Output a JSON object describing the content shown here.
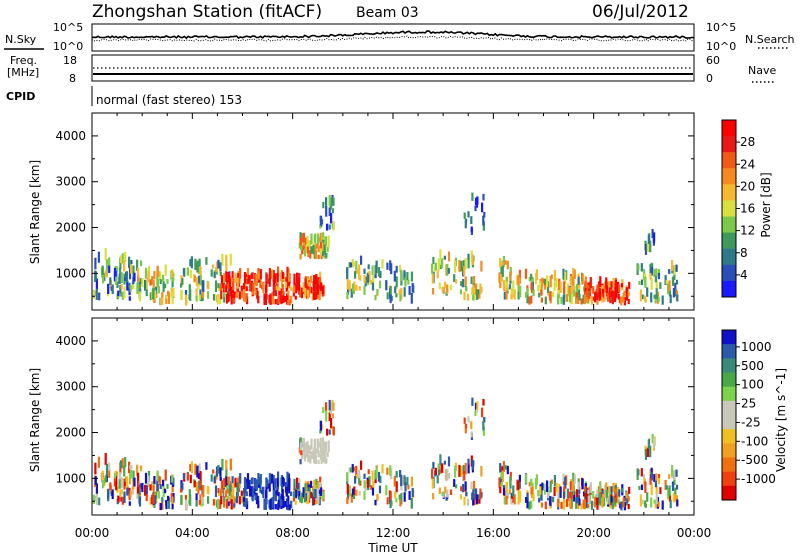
{
  "header": {
    "station": "Zhongshan Station (fitACF)",
    "beam": "Beam 03",
    "date": "06/Jul/2012"
  },
  "nsky_panel": {
    "left_label": "N.Sky",
    "right_label": "N.Search",
    "tick_high": "10^5",
    "tick_low": "10^0"
  },
  "freq_panel": {
    "left_label_1": "Freq.",
    "left_label_2": "[MHz]",
    "left_ticks": [
      "18",
      "8"
    ],
    "right_label": "Nave",
    "right_ticks": [
      "60",
      "0"
    ]
  },
  "cpid": {
    "label": "CPID",
    "text": "normal (fast stereo) 153"
  },
  "chart_data": [
    {
      "type": "heatmap",
      "name": "power",
      "ylabel": "Slant Range [km]",
      "ylim": [
        200,
        4500
      ],
      "yticks": [
        1000,
        2000,
        3000,
        4000
      ],
      "xlim": [
        0,
        24
      ],
      "colorbar": {
        "label": "Power [dB]",
        "ticks": [
          "4",
          "8",
          "12",
          "16",
          "20",
          "24",
          "28"
        ],
        "tick_values": [
          4,
          8,
          12,
          16,
          20,
          24,
          28
        ],
        "range": [
          0,
          32
        ],
        "colors": [
          "#1a1aff",
          "#2a4fb8",
          "#2f7a8a",
          "#3c9a5a",
          "#7cc84a",
          "#d8e040",
          "#f6b830",
          "#f68a20",
          "#f05a18",
          "#e81818",
          "#ff0000"
        ]
      }
    },
    {
      "type": "heatmap",
      "name": "velocity",
      "ylabel": "Slant Range [km]",
      "ylim": [
        200,
        4500
      ],
      "yticks": [
        1000,
        2000,
        3000,
        4000
      ],
      "xlim": [
        0,
        24
      ],
      "colorbar": {
        "label": "Velocity [m s^-1]",
        "ticks": [
          "1000",
          "500",
          "100",
          "25",
          "-25",
          "-100",
          "-500",
          "-1000"
        ],
        "colors": [
          "#1010c8",
          "#2a5aa8",
          "#3a8a7a",
          "#48a848",
          "#7cd24a",
          "#c8c8b8",
          "#c8c8b8",
          "#f0c020",
          "#f0a020",
          "#f07010",
          "#f04010",
          "#e00000"
        ]
      }
    }
  ],
  "time_axis": {
    "label": "Time UT",
    "ticks": [
      "00:00",
      "04:00",
      "08:00",
      "12:00",
      "16:00",
      "20:00",
      "00:00"
    ],
    "tick_hours": [
      0,
      4,
      8,
      12,
      16,
      20,
      24
    ]
  },
  "colors": {
    "power_scale": [
      "#1a1aff",
      "#2a4fb8",
      "#2f7a8a",
      "#3c9a5a",
      "#7cc84a",
      "#d8e040",
      "#f6b830",
      "#f68a20",
      "#f05a18",
      "#e81818",
      "#ff0000"
    ],
    "velocity_scale": [
      "#1010c8",
      "#2a5aa8",
      "#3a8a7a",
      "#48a848",
      "#7cd24a",
      "#c8c8b8",
      "#f0c020",
      "#f0a020",
      "#f07010",
      "#f04010",
      "#e00000"
    ]
  }
}
